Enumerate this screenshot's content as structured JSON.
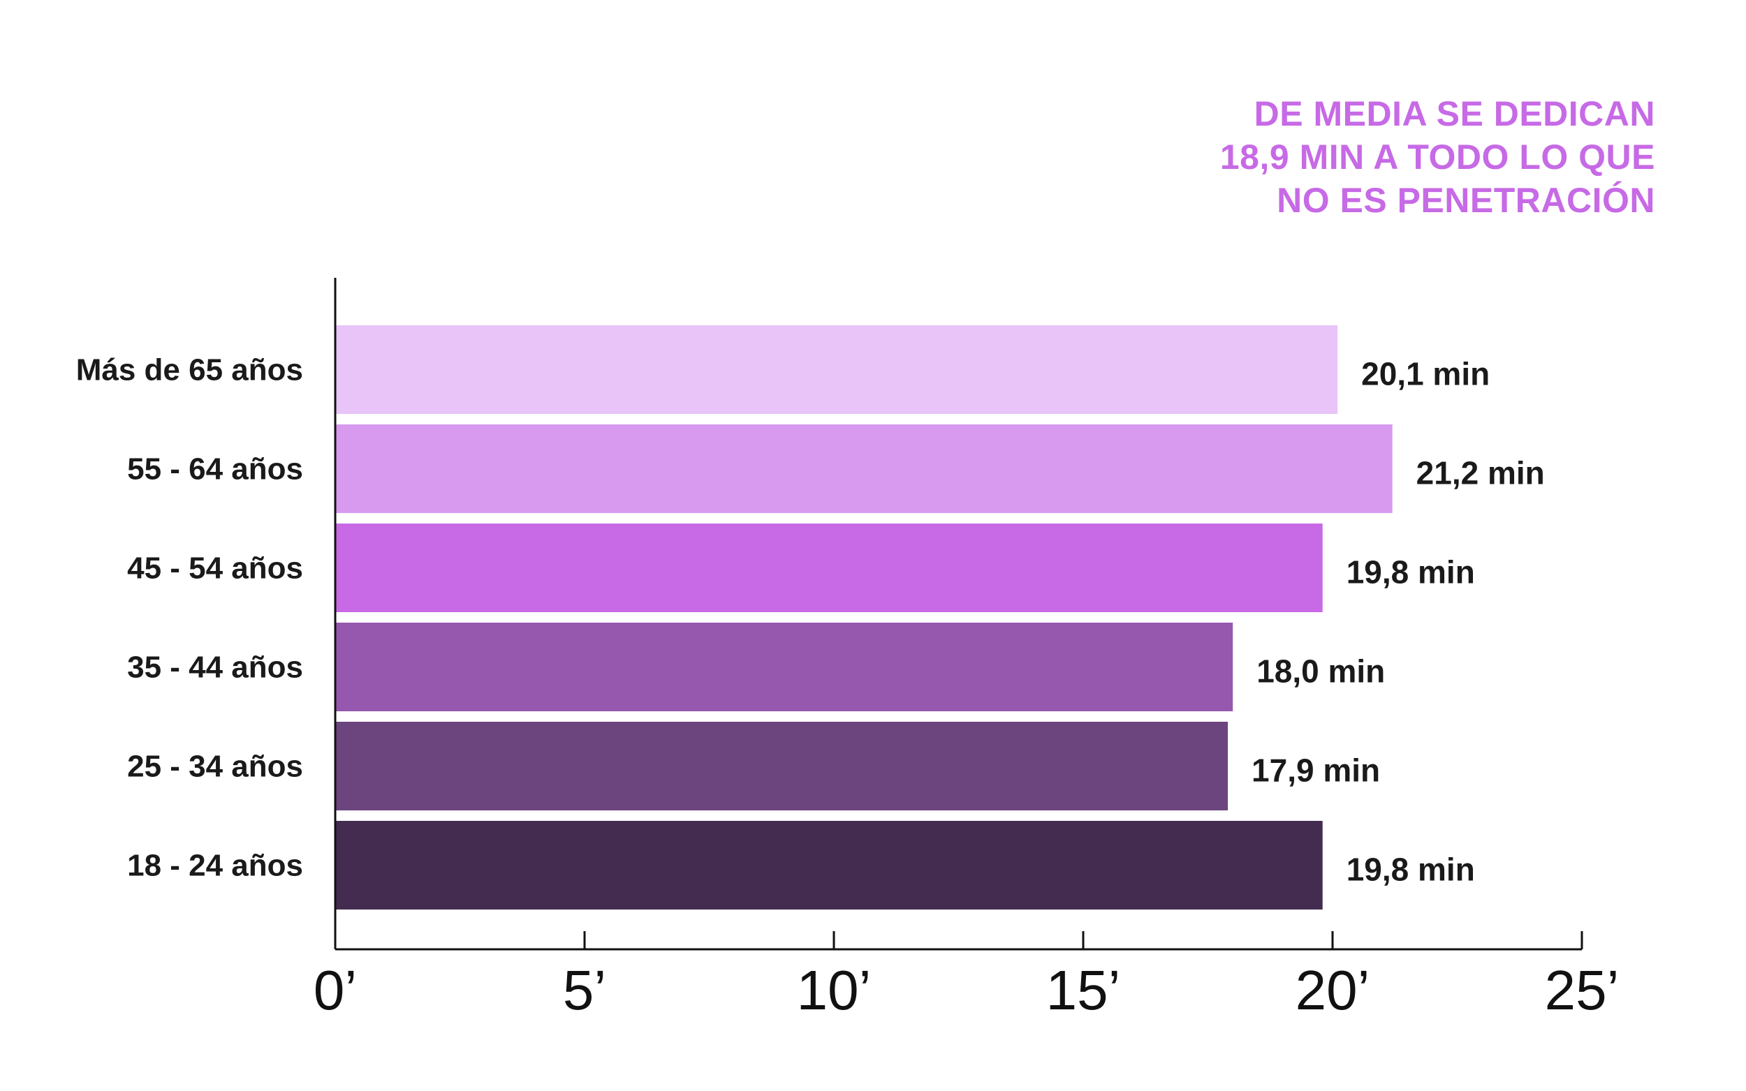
{
  "headline": {
    "lines": [
      "DE MEDIA SE DEDICAN",
      "18,9 MIN A TODO LO QUE",
      "NO ES PENETRACIÓN"
    ],
    "color": "#c76ae6"
  },
  "chart_data": {
    "type": "bar",
    "orientation": "horizontal",
    "title": "",
    "xlabel": "",
    "ylabel": "",
    "categories": [
      "Más de 65 años",
      "55 - 64 años",
      "45 - 54 años",
      "35 - 44 años",
      "25 - 34 años",
      "18 - 24 años"
    ],
    "values": [
      20.1,
      21.2,
      19.8,
      18.0,
      17.9,
      19.8
    ],
    "value_labels": [
      "20,1 min",
      "21,2 min",
      "19,8 min",
      "18,0 min",
      "17,9 min",
      "19,8 min"
    ],
    "colors": [
      "#e8c4f8",
      "#d89aee",
      "#c86ae6",
      "#9657ae",
      "#6c447e",
      "#432c50"
    ],
    "xlim": [
      0,
      25
    ],
    "xticks": [
      0,
      5,
      10,
      15,
      20,
      25
    ],
    "xtick_labels": [
      "0’",
      "5’",
      "10’",
      "15’",
      "20’",
      "25’"
    ],
    "grid": false,
    "legend": "none"
  }
}
